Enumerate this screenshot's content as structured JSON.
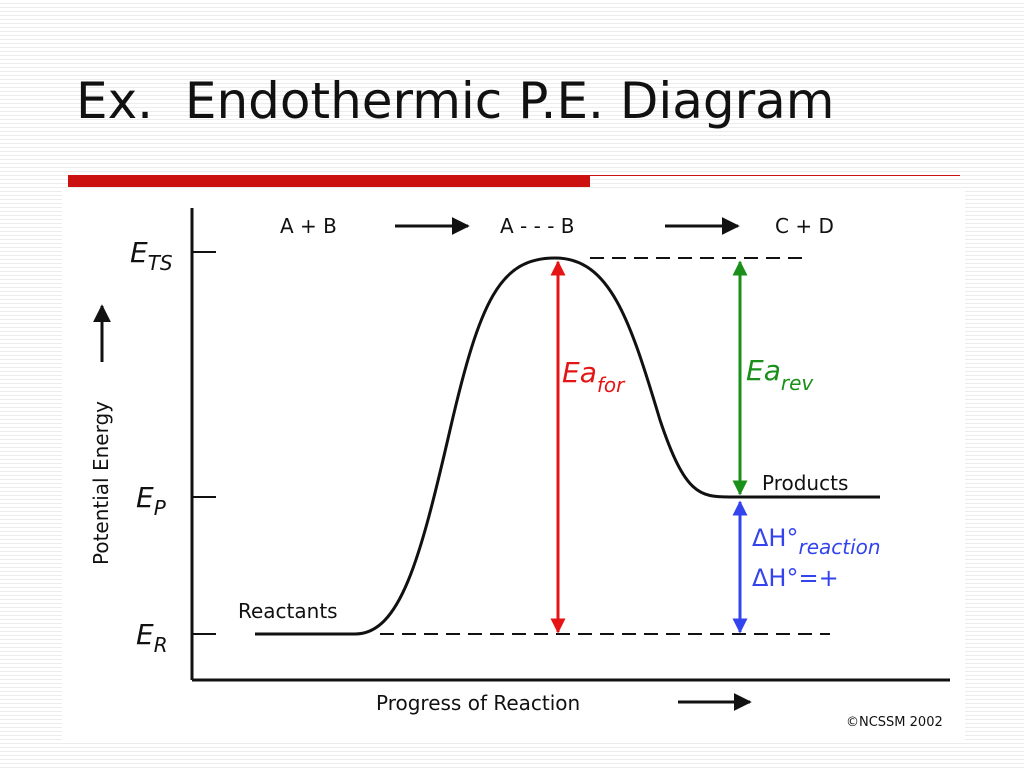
{
  "title": "Ex.  Endothermic P.E. Diagram",
  "diagram": {
    "energy_levels": [
      {
        "symbol": "E",
        "subscript": "TS"
      },
      {
        "symbol": "E",
        "subscript": "P"
      },
      {
        "symbol": "E",
        "subscript": "R"
      }
    ],
    "y_axis_label": "Potential Energy",
    "x_axis_label": "Progress of Reaction",
    "steps": [
      "A + B",
      "A - - - B",
      "C + D"
    ],
    "reactants_label": "Reactants",
    "products_label": "Products",
    "activation_forward": {
      "symbol": "Ea",
      "subscript": "for"
    },
    "activation_reverse": {
      "symbol": "Ea",
      "subscript": "rev"
    },
    "enthalpy": {
      "symbol": "ΔH°",
      "subscript": "reaction",
      "sign": "ΔH°=+"
    },
    "copyright": "©NCSSM 2002"
  }
}
